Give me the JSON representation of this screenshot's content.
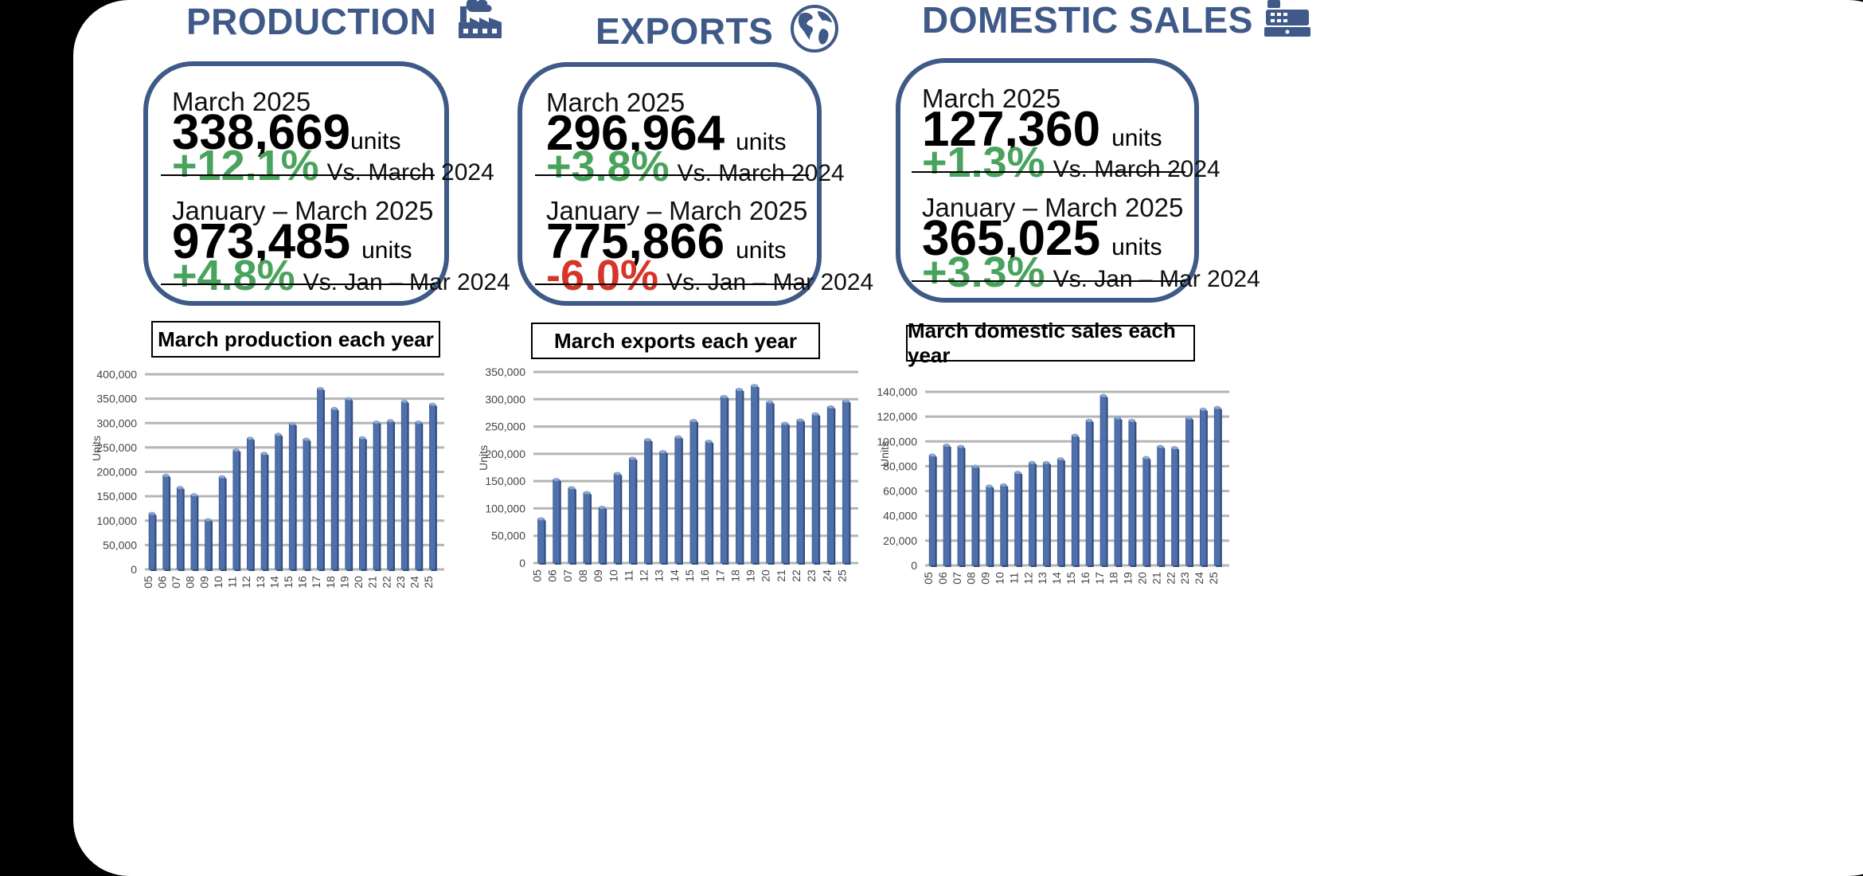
{
  "sections": [
    {
      "key": "production",
      "title": "PRODUCTION",
      "icon": "factory-icon",
      "month": {
        "period": "March 2025",
        "value": "338,669",
        "unit": "units",
        "change": "+12.1%",
        "trend": "positive",
        "comparison": "Vs. March 2024"
      },
      "ytd": {
        "period": "January – March 2025",
        "value": "973,485",
        "unit": "units",
        "change": "+4.8%",
        "trend": "positive",
        "comparison": "Vs. Jan – Mar 2024"
      },
      "chart_title": "March production each year"
    },
    {
      "key": "exports",
      "title": "EXPORTS",
      "icon": "globe-icon",
      "month": {
        "period": "March 2025",
        "value": "296,964",
        "unit": "units",
        "change": "+3.8%",
        "trend": "positive",
        "comparison": "Vs. March 2024"
      },
      "ytd": {
        "period": "January – March 2025",
        "value": "775,866",
        "unit": "units",
        "change": "-6.0%",
        "trend": "negative",
        "comparison": "Vs. Jan – Mar 2024"
      },
      "chart_title": "March exports each year"
    },
    {
      "key": "domestic",
      "title": "DOMESTIC SALES",
      "icon": "cash-register-icon",
      "month": {
        "period": "March 2025",
        "value": "127,360",
        "unit": "units",
        "change": "+1.3%",
        "trend": "positive",
        "comparison": "Vs. March 2024"
      },
      "ytd": {
        "period": "January – March 2025",
        "value": "365,025",
        "unit": "units",
        "change": "+3.3%",
        "trend": "positive",
        "comparison": "Vs. Jan – Mar 2024"
      },
      "chart_title": "March domestic sales each year"
    }
  ],
  "colors": {
    "brand": "#3f5a88",
    "positive": "#4aa35d",
    "negative": "#d63527",
    "bar": "#4f70aa"
  },
  "chart_data": [
    {
      "type": "bar",
      "title": "March production each year",
      "ylabel": "Units",
      "ylim": [
        0,
        400000
      ],
      "yticks": [
        "0",
        "50,000",
        "100,000",
        "150,000",
        "200,000",
        "250,000",
        "300,000",
        "350,000",
        "400,000"
      ],
      "categories": [
        "05",
        "06",
        "07",
        "08",
        "09",
        "10",
        "11",
        "12",
        "13",
        "14",
        "15",
        "16",
        "17",
        "18",
        "19",
        "20",
        "21",
        "22",
        "23",
        "24",
        "25"
      ],
      "values": [
        115000,
        193000,
        168000,
        153000,
        102000,
        190000,
        245000,
        269000,
        238000,
        277000,
        299000,
        267000,
        371000,
        330000,
        350000,
        270000,
        302000,
        305000,
        345000,
        302000,
        338669
      ],
      "grid": true
    },
    {
      "type": "bar",
      "title": "March exports each year",
      "ylabel": "Units",
      "ylim": [
        0,
        350000
      ],
      "yticks": [
        "0",
        "50,000",
        "100,000",
        "150,000",
        "200,000",
        "250,000",
        "300,000",
        "350,000"
      ],
      "categories": [
        "05",
        "06",
        "07",
        "08",
        "09",
        "10",
        "11",
        "12",
        "13",
        "14",
        "15",
        "16",
        "17",
        "18",
        "19",
        "20",
        "21",
        "22",
        "23",
        "24",
        "25"
      ],
      "values": [
        81000,
        153000,
        138000,
        129000,
        102000,
        164000,
        192000,
        226000,
        204000,
        231000,
        261000,
        223000,
        305000,
        318000,
        325000,
        295000,
        256000,
        262000,
        273000,
        286000,
        296964
      ],
      "grid": true
    },
    {
      "type": "bar",
      "title": "March domestic sales each year",
      "ylabel": "Units",
      "ylim": [
        0,
        140000
      ],
      "yticks": [
        "0",
        "20,000",
        "40,000",
        "60,000",
        "80,000",
        "100,000",
        "120,000",
        "140,000"
      ],
      "categories": [
        "05",
        "06",
        "07",
        "08",
        "09",
        "10",
        "11",
        "12",
        "13",
        "14",
        "15",
        "16",
        "17",
        "18",
        "19",
        "20",
        "21",
        "22",
        "23",
        "24",
        "25"
      ],
      "values": [
        89000,
        97000,
        96000,
        80000,
        64000,
        65000,
        75000,
        83000,
        83000,
        86000,
        105000,
        117000,
        137000,
        119000,
        117000,
        87000,
        96000,
        95000,
        119000,
        126000,
        127360
      ],
      "grid": true
    }
  ]
}
